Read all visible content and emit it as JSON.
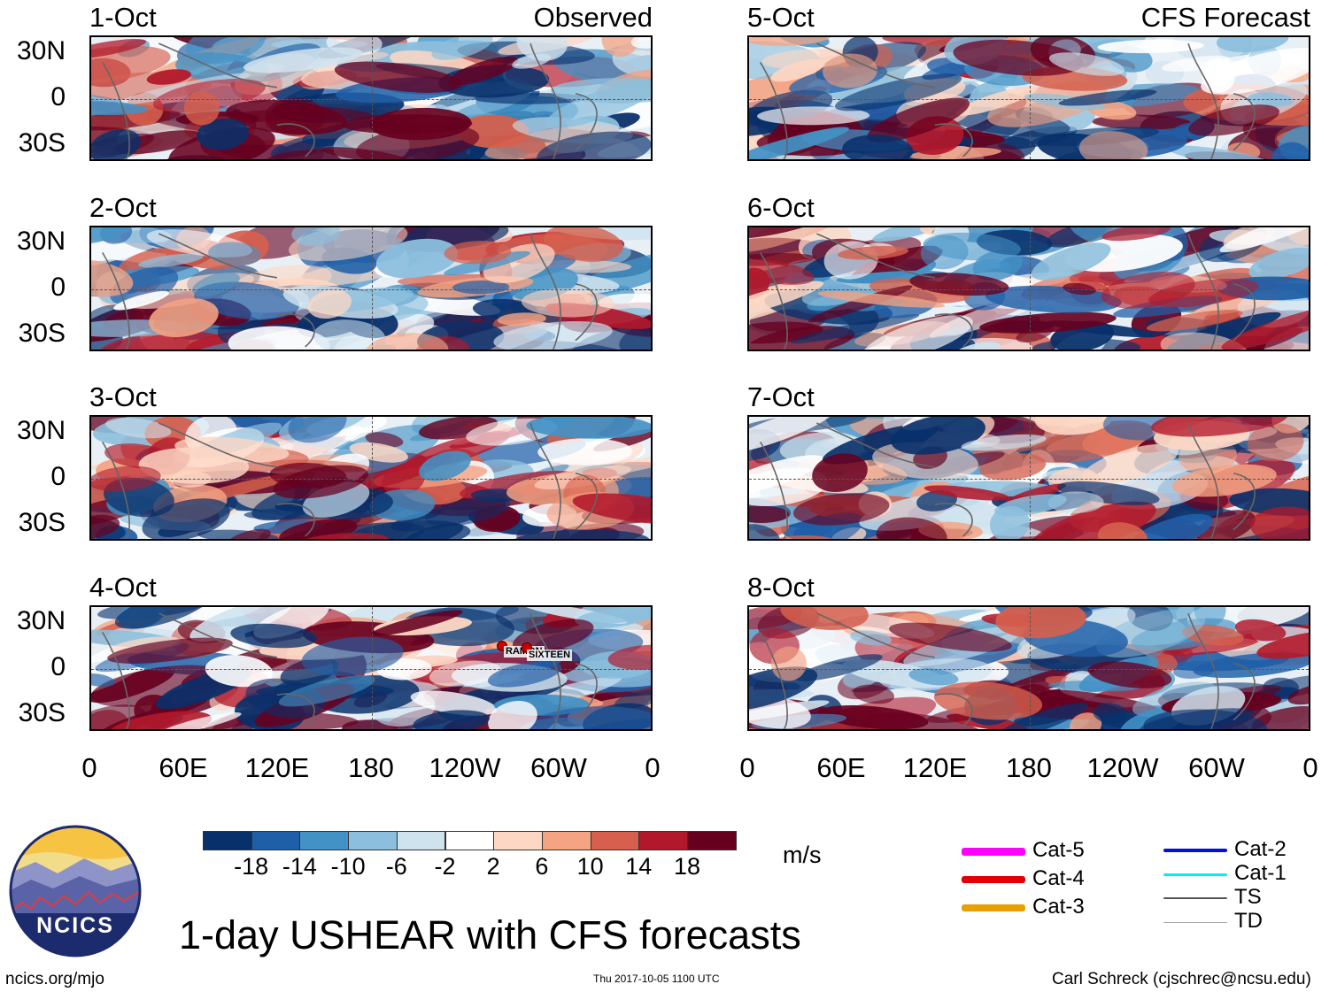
{
  "chart_data": {
    "type": "heatmap",
    "title": "1-day USHEAR with CFS forecasts",
    "units": "m/s",
    "colorbar_ticks": [
      "-18",
      "-14",
      "-10",
      "-6",
      "-2",
      "2",
      "6",
      "10",
      "14",
      "18"
    ],
    "colorbar_colors": [
      "#08306b",
      "#1f5fa8",
      "#4292c6",
      "#8cbfdd",
      "#cfe3ef",
      "#ffffff",
      "#fdd7c4",
      "#f4a383",
      "#d6604d",
      "#b2182b",
      "#67001f"
    ],
    "x_tick_labels": [
      "0",
      "60E",
      "120E",
      "180",
      "120W",
      "60W",
      "0"
    ],
    "y_tick_labels": [
      "30N",
      "0",
      "30S"
    ],
    "columns": [
      {
        "header": "Observed",
        "panels": [
          "1-Oct",
          "2-Oct",
          "3-Oct",
          "4-Oct"
        ]
      },
      {
        "header": "CFS Forecast",
        "panels": [
          "5-Oct",
          "6-Oct",
          "7-Oct",
          "8-Oct"
        ]
      }
    ],
    "storm_labels": [
      "RAMON",
      "SIXTEEN"
    ]
  },
  "legend": {
    "items": [
      {
        "label": "Cat-5",
        "color": "#ff00ff"
      },
      {
        "label": "Cat-4",
        "color": "#e00000"
      },
      {
        "label": "Cat-3",
        "color": "#e8a000"
      },
      {
        "label": "Cat-2",
        "color": "#0010e0"
      },
      {
        "label": "Cat-1",
        "color": "#00f0f0"
      },
      {
        "label": "TS",
        "color": "#555555"
      },
      {
        "label": "TD",
        "color": "#aaaaaa"
      }
    ]
  },
  "logo": {
    "text": "NCICS"
  },
  "footer": {
    "left": "ncics.org/mjo",
    "center": "Thu 2017-10-05 1100 UTC",
    "right": "Carl Schreck (cjschrec@ncsu.edu)"
  }
}
